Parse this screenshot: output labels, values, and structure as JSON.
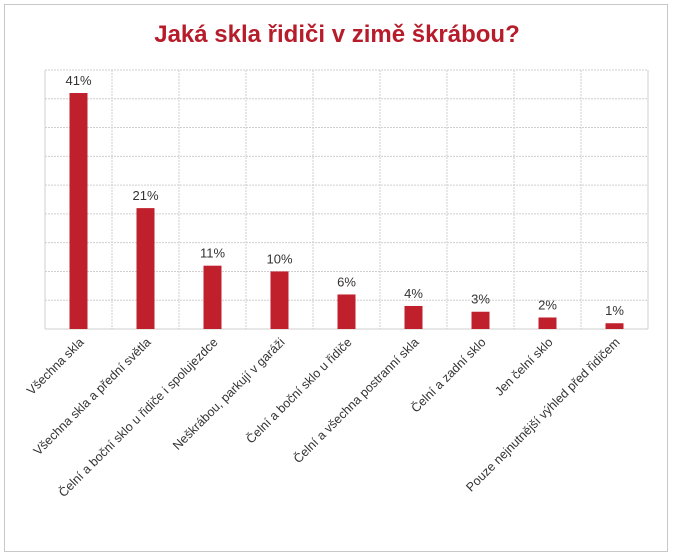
{
  "chart_data": {
    "type": "bar",
    "title": "Jaká skla řidiči v zimě škrábou?",
    "categories": [
      "Všechna skla",
      "Všechna skla a přední světla",
      "Čelní a boční sklo u řidiče i spolujezdce",
      "Neškrábou, parkují v garáži",
      "Čelní a boční sklo u řidiče",
      "Čelní a všechna postranní skla",
      "Čelní a zadní sklo",
      "Jen čelní sklo",
      "Pouze nejnutnější výhled před řidičem"
    ],
    "values": [
      41,
      21,
      11,
      10,
      6,
      4,
      3,
      2,
      1
    ],
    "value_labels": [
      "41%",
      "21%",
      "11%",
      "10%",
      "6%",
      "4%",
      "3%",
      "2%",
      "1%"
    ],
    "ylim": [
      0,
      45
    ],
    "grid": true,
    "bar_color": "#c01f2c",
    "title_color": "#b71c2b",
    "grid_color": "#cfcfcf"
  }
}
